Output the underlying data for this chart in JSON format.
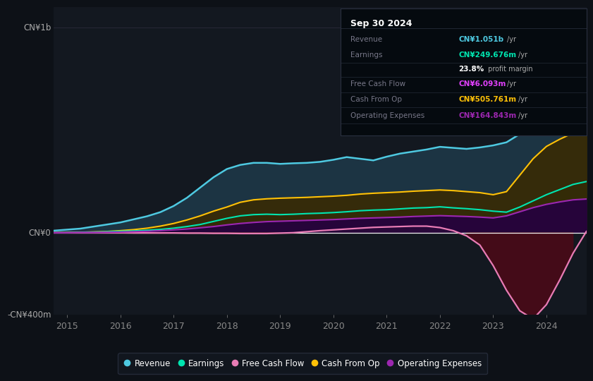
{
  "bg_color": "#0d1117",
  "plot_bg_color": "#131820",
  "title_box": {
    "date": "Sep 30 2024",
    "rows": [
      {
        "label": "Revenue",
        "value": "CN¥1.051b",
        "unit": "/yr",
        "value_color": "#4ec9e1"
      },
      {
        "label": "Earnings",
        "value": "CN¥249.676m",
        "unit": "/yr",
        "value_color": "#00e5b0"
      },
      {
        "label": "",
        "value": "23.8%",
        "unit": " profit margin",
        "value_color": "#ffffff"
      },
      {
        "label": "Free Cash Flow",
        "value": "CN¥6.093m",
        "unit": "/yr",
        "value_color": "#e040fb"
      },
      {
        "label": "Cash From Op",
        "value": "CN¥505.761m",
        "unit": "/yr",
        "value_color": "#ffc107"
      },
      {
        "label": "Operating Expenses",
        "value": "CN¥164.843m",
        "unit": "/yr",
        "value_color": "#9c27b0"
      }
    ]
  },
  "years": [
    2014.75,
    2015.0,
    2015.25,
    2015.5,
    2015.75,
    2016.0,
    2016.25,
    2016.5,
    2016.75,
    2017.0,
    2017.25,
    2017.5,
    2017.75,
    2018.0,
    2018.25,
    2018.5,
    2018.75,
    2019.0,
    2019.25,
    2019.5,
    2019.75,
    2020.0,
    2020.25,
    2020.5,
    2020.75,
    2021.0,
    2021.25,
    2021.5,
    2021.75,
    2022.0,
    2022.25,
    2022.5,
    2022.75,
    2023.0,
    2023.25,
    2023.5,
    2023.75,
    2024.0,
    2024.25,
    2024.5,
    2024.75
  ],
  "revenue": [
    10,
    15,
    20,
    30,
    40,
    50,
    65,
    80,
    100,
    130,
    170,
    220,
    270,
    310,
    330,
    340,
    340,
    335,
    338,
    340,
    345,
    355,
    368,
    360,
    352,
    370,
    385,
    395,
    405,
    418,
    413,
    408,
    415,
    425,
    440,
    480,
    560,
    680,
    820,
    960,
    1051
  ],
  "earnings": [
    0,
    1,
    2,
    3,
    5,
    7,
    9,
    12,
    16,
    22,
    30,
    40,
    55,
    70,
    82,
    88,
    90,
    88,
    90,
    93,
    95,
    98,
    102,
    107,
    110,
    112,
    116,
    120,
    122,
    126,
    121,
    117,
    112,
    105,
    100,
    125,
    155,
    185,
    210,
    235,
    249
  ],
  "free_cash_flow": [
    0,
    0,
    0,
    0,
    0,
    0,
    -1,
    -1,
    -1,
    -1,
    -2,
    -2,
    -3,
    -3,
    -4,
    -4,
    -4,
    -2,
    0,
    5,
    10,
    14,
    18,
    22,
    26,
    28,
    30,
    32,
    32,
    25,
    10,
    -15,
    -60,
    -160,
    -280,
    -380,
    -420,
    -350,
    -230,
    -100,
    6
  ],
  "cash_from_op": [
    0,
    1,
    2,
    4,
    6,
    10,
    15,
    22,
    32,
    45,
    62,
    82,
    105,
    125,
    148,
    160,
    165,
    168,
    170,
    172,
    175,
    178,
    182,
    188,
    192,
    195,
    198,
    202,
    205,
    208,
    205,
    200,
    195,
    185,
    200,
    280,
    360,
    420,
    455,
    485,
    505
  ],
  "op_expenses": [
    0,
    0,
    1,
    1,
    2,
    3,
    5,
    7,
    10,
    14,
    18,
    24,
    30,
    38,
    45,
    50,
    54,
    56,
    58,
    60,
    62,
    64,
    67,
    70,
    72,
    74,
    76,
    79,
    81,
    83,
    81,
    79,
    76,
    72,
    82,
    102,
    122,
    138,
    150,
    160,
    164
  ],
  "ylim": [
    -400,
    1100
  ],
  "xtick_start": 2015,
  "xtick_end": 2024,
  "xticks": [
    2015,
    2016,
    2017,
    2018,
    2019,
    2020,
    2021,
    2022,
    2023,
    2024
  ],
  "ytick_labels": [
    "-CN¥400m",
    "CN¥0",
    "CN¥1b"
  ],
  "ytick_values": [
    -400,
    0,
    1000
  ],
  "legend": [
    {
      "label": "Revenue",
      "color": "#4ec9e1"
    },
    {
      "label": "Earnings",
      "color": "#00e5b0"
    },
    {
      "label": "Free Cash Flow",
      "color": "#e87cb5"
    },
    {
      "label": "Cash From Op",
      "color": "#ffc107"
    },
    {
      "label": "Operating Expenses",
      "color": "#9c27b0"
    }
  ],
  "line_colors": {
    "revenue": "#4ec9e1",
    "earnings": "#00e5b0",
    "free_cash_flow": "#e87cb5",
    "cash_from_op": "#ffc107",
    "op_expenses": "#9c27b0"
  },
  "fill_colors": {
    "revenue": "#1e3a4a",
    "earnings": "#0a3530",
    "cash_from_op": "#3a2a00",
    "op_expenses": "#250040",
    "fcf_neg": "#4a0a18",
    "fcf_pos": "#2a0a3a"
  }
}
